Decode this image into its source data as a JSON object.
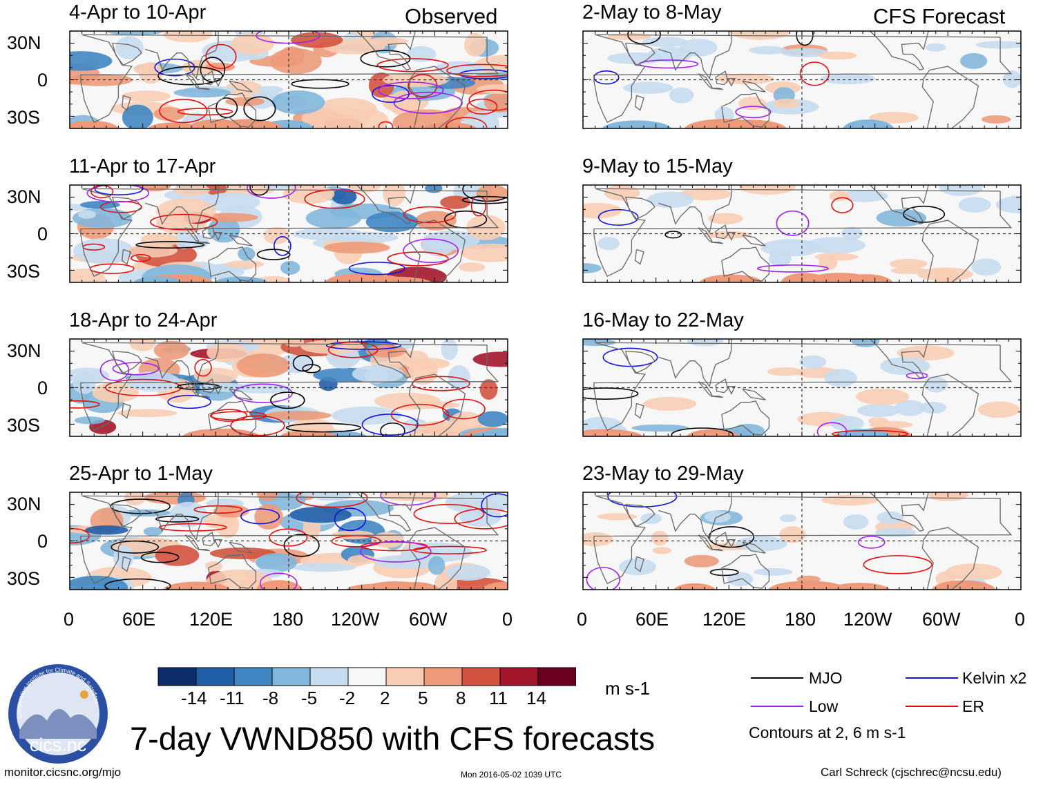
{
  "columns": {
    "left_title": "Observed",
    "right_title": "CFS Forecast"
  },
  "panels": {
    "left": [
      "4-Apr to 10-Apr",
      "11-Apr to 17-Apr",
      "18-Apr to 24-Apr",
      "25-Apr to 1-May"
    ],
    "right": [
      "2-May to 8-May",
      "9-May to 15-May",
      "16-May to 22-May",
      "23-May to 29-May"
    ]
  },
  "axes": {
    "lat_ticks": [
      "30N",
      "0",
      "30S"
    ],
    "lon_ticks": [
      "0",
      "60E",
      "120E",
      "180",
      "120W",
      "60W",
      "0"
    ]
  },
  "colorbar": {
    "values": [
      "-14",
      "-11",
      "-8",
      "-5",
      "-2",
      "2",
      "5",
      "8",
      "11",
      "14"
    ],
    "units": "m s-1",
    "colors": [
      "#0a2f6b",
      "#1f5fa8",
      "#3f86c3",
      "#82b6da",
      "#c6dcee",
      "#f7f7f7",
      "#f8cdb4",
      "#ec9a79",
      "#d2533f",
      "#a3162a",
      "#6b0320"
    ]
  },
  "legend": {
    "mjo": {
      "label": "MJO",
      "color": "#000000"
    },
    "kelvin": {
      "label": "Kelvin x2",
      "color": "#1010e0"
    },
    "low": {
      "label": "Low",
      "color": "#a020f0"
    },
    "er": {
      "label": "ER",
      "color": "#e01010"
    },
    "note": "Contours at 2, 6 m s-1"
  },
  "title": "7-day VWND850 with CFS forecasts",
  "logo": {
    "text": "cics.nc",
    "ring_text": "Cooperative Institute for Climate and Satellites"
  },
  "footer": {
    "url": "monitor.cicsnc.org/mjo",
    "timestamp": "Mon 2016-05-02 1039 UTC",
    "author": "Carl Schreck (cjschrec@ncsu.edu)"
  }
}
